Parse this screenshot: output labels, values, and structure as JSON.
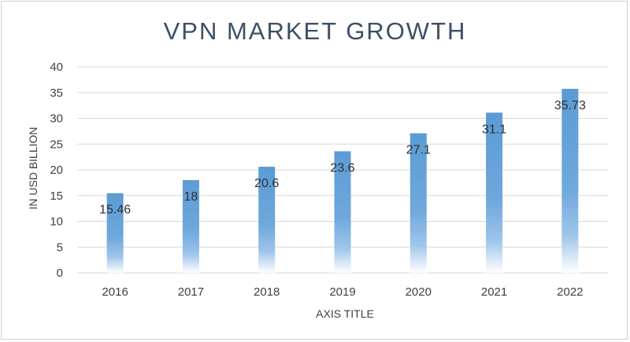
{
  "chart_data": {
    "type": "bar",
    "title": "VPN MARKET GROWTH",
    "xlabel": "AXIS TITLE",
    "ylabel": "IN USD BILLION",
    "categories": [
      "2016",
      "2017",
      "2018",
      "2019",
      "2020",
      "2021",
      "2022"
    ],
    "values": [
      15.46,
      18,
      20.6,
      23.6,
      27.1,
      31.1,
      35.73
    ],
    "data_labels": [
      "15.46",
      "18",
      "20.6",
      "23.6",
      "27.1",
      "31.1",
      "35.73"
    ],
    "ylim": [
      0,
      40
    ],
    "yticks": [
      "0",
      "5",
      "10",
      "15",
      "20",
      "25",
      "30",
      "35",
      "40"
    ],
    "grid": true,
    "legend": "none",
    "colors": {
      "bar": "#5b9bd5",
      "grid": "#d9d9d9",
      "title": "#3d4f66"
    }
  }
}
